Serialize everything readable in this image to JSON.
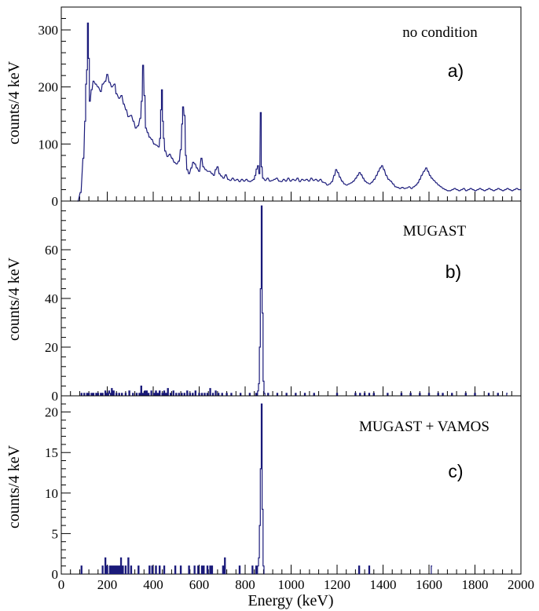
{
  "chart_data": [
    {
      "type": "histogram",
      "annotation": "no condition",
      "panel_label": "a)",
      "ylabel": "counts/4 keV",
      "xlim": [
        0,
        2000
      ],
      "ylim": [
        0,
        340
      ],
      "ytick_values": [
        0,
        100,
        200,
        300
      ],
      "ytick_labels": [
        "0",
        "100",
        "200",
        "300"
      ],
      "color": "#1a1a7a",
      "bin_width": 4,
      "spectrum": [
        [
          72,
          0
        ],
        [
          84,
          15
        ],
        [
          96,
          75
        ],
        [
          104,
          140
        ],
        [
          108,
          205
        ],
        [
          112,
          230
        ],
        [
          116,
          312
        ],
        [
          120,
          250
        ],
        [
          124,
          175
        ],
        [
          132,
          195
        ],
        [
          140,
          210
        ],
        [
          150,
          205
        ],
        [
          160,
          200
        ],
        [
          172,
          192
        ],
        [
          180,
          205
        ],
        [
          192,
          210
        ],
        [
          200,
          222
        ],
        [
          210,
          208
        ],
        [
          220,
          200
        ],
        [
          232,
          205
        ],
        [
          240,
          188
        ],
        [
          252,
          180
        ],
        [
          262,
          185
        ],
        [
          272,
          170
        ],
        [
          282,
          160
        ],
        [
          292,
          148
        ],
        [
          304,
          150
        ],
        [
          314,
          140
        ],
        [
          324,
          128
        ],
        [
          334,
          132
        ],
        [
          344,
          145
        ],
        [
          350,
          175
        ],
        [
          356,
          238
        ],
        [
          362,
          185
        ],
        [
          368,
          128
        ],
        [
          376,
          120
        ],
        [
          384,
          112
        ],
        [
          394,
          108
        ],
        [
          404,
          100
        ],
        [
          414,
          98
        ],
        [
          424,
          95
        ],
        [
          430,
          110
        ],
        [
          434,
          160
        ],
        [
          438,
          195
        ],
        [
          442,
          140
        ],
        [
          446,
          110
        ],
        [
          452,
          88
        ],
        [
          462,
          78
        ],
        [
          472,
          82
        ],
        [
          482,
          75
        ],
        [
          492,
          68
        ],
        [
          502,
          65
        ],
        [
          512,
          70
        ],
        [
          520,
          90
        ],
        [
          526,
          135
        ],
        [
          530,
          165
        ],
        [
          536,
          150
        ],
        [
          542,
          80
        ],
        [
          548,
          55
        ],
        [
          556,
          48
        ],
        [
          566,
          58
        ],
        [
          574,
          68
        ],
        [
          582,
          65
        ],
        [
          590,
          58
        ],
        [
          600,
          52
        ],
        [
          610,
          75
        ],
        [
          618,
          60
        ],
        [
          628,
          55
        ],
        [
          638,
          52
        ],
        [
          646,
          52
        ],
        [
          656,
          48
        ],
        [
          664,
          45
        ],
        [
          672,
          55
        ],
        [
          680,
          60
        ],
        [
          688,
          48
        ],
        [
          696,
          44
        ],
        [
          706,
          40
        ],
        [
          716,
          46
        ],
        [
          726,
          38
        ],
        [
          736,
          36
        ],
        [
          746,
          40
        ],
        [
          756,
          36
        ],
        [
          766,
          38
        ],
        [
          776,
          34
        ],
        [
          786,
          38
        ],
        [
          796,
          35
        ],
        [
          806,
          38
        ],
        [
          814,
          35
        ],
        [
          822,
          34
        ],
        [
          830,
          36
        ],
        [
          838,
          38
        ],
        [
          844,
          45
        ],
        [
          850,
          56
        ],
        [
          856,
          62
        ],
        [
          862,
          48
        ],
        [
          868,
          155
        ],
        [
          872,
          60
        ],
        [
          878,
          40
        ],
        [
          888,
          36
        ],
        [
          898,
          40
        ],
        [
          908,
          35
        ],
        [
          918,
          36
        ],
        [
          928,
          38
        ],
        [
          938,
          40
        ],
        [
          948,
          35
        ],
        [
          958,
          34
        ],
        [
          968,
          38
        ],
        [
          978,
          35
        ],
        [
          988,
          40
        ],
        [
          998,
          35
        ],
        [
          1008,
          38
        ],
        [
          1018,
          36
        ],
        [
          1028,
          40
        ],
        [
          1038,
          34
        ],
        [
          1048,
          38
        ],
        [
          1058,
          36
        ],
        [
          1068,
          38
        ],
        [
          1078,
          35
        ],
        [
          1088,
          40
        ],
        [
          1098,
          36
        ],
        [
          1108,
          38
        ],
        [
          1118,
          35
        ],
        [
          1128,
          38
        ],
        [
          1138,
          33
        ],
        [
          1148,
          32
        ],
        [
          1158,
          28
        ],
        [
          1168,
          30
        ],
        [
          1178,
          34
        ],
        [
          1188,
          45
        ],
        [
          1196,
          55
        ],
        [
          1204,
          50
        ],
        [
          1212,
          42
        ],
        [
          1222,
          35
        ],
        [
          1232,
          30
        ],
        [
          1242,
          28
        ],
        [
          1252,
          30
        ],
        [
          1262,
          32
        ],
        [
          1272,
          35
        ],
        [
          1282,
          40
        ],
        [
          1290,
          45
        ],
        [
          1298,
          50
        ],
        [
          1306,
          46
        ],
        [
          1314,
          40
        ],
        [
          1322,
          35
        ],
        [
          1332,
          32
        ],
        [
          1342,
          30
        ],
        [
          1352,
          33
        ],
        [
          1362,
          38
        ],
        [
          1372,
          45
        ],
        [
          1380,
          52
        ],
        [
          1388,
          58
        ],
        [
          1396,
          62
        ],
        [
          1404,
          55
        ],
        [
          1414,
          45
        ],
        [
          1424,
          38
        ],
        [
          1434,
          35
        ],
        [
          1444,
          30
        ],
        [
          1454,
          25
        ],
        [
          1464,
          24
        ],
        [
          1474,
          22
        ],
        [
          1484,
          24
        ],
        [
          1494,
          22
        ],
        [
          1504,
          23
        ],
        [
          1514,
          25
        ],
        [
          1524,
          22
        ],
        [
          1534,
          25
        ],
        [
          1544,
          28
        ],
        [
          1552,
          32
        ],
        [
          1560,
          38
        ],
        [
          1568,
          45
        ],
        [
          1578,
          52
        ],
        [
          1588,
          58
        ],
        [
          1596,
          52
        ],
        [
          1604,
          45
        ],
        [
          1612,
          40
        ],
        [
          1622,
          36
        ],
        [
          1632,
          32
        ],
        [
          1642,
          28
        ],
        [
          1652,
          25
        ],
        [
          1662,
          22
        ],
        [
          1672,
          20
        ],
        [
          1682,
          18
        ],
        [
          1692,
          18
        ],
        [
          1702,
          20
        ],
        [
          1712,
          22
        ],
        [
          1722,
          20
        ],
        [
          1732,
          18
        ],
        [
          1742,
          20
        ],
        [
          1752,
          22
        ],
        [
          1762,
          18
        ],
        [
          1772,
          20
        ],
        [
          1782,
          22
        ],
        [
          1792,
          20
        ],
        [
          1802,
          18
        ],
        [
          1812,
          20
        ],
        [
          1822,
          22
        ],
        [
          1832,
          20
        ],
        [
          1842,
          18
        ],
        [
          1852,
          20
        ],
        [
          1862,
          22
        ],
        [
          1872,
          20
        ],
        [
          1882,
          18
        ],
        [
          1892,
          20
        ],
        [
          1902,
          22
        ],
        [
          1912,
          20
        ],
        [
          1922,
          18
        ],
        [
          1932,
          20
        ],
        [
          1942,
          22
        ],
        [
          1952,
          20
        ],
        [
          1962,
          18
        ],
        [
          1972,
          20
        ],
        [
          1982,
          22
        ],
        [
          1992,
          20
        ],
        [
          2000,
          20
        ]
      ]
    },
    {
      "type": "histogram",
      "annotation": "MUGAST",
      "panel_label": "b)",
      "ylabel": "counts/4 keV",
      "xlim": [
        0,
        2000
      ],
      "ylim": [
        0,
        80
      ],
      "ytick_values": [
        0,
        20,
        40,
        60
      ],
      "ytick_labels": [
        "0",
        "20",
        "40",
        "60"
      ],
      "color": "#1a1a7a",
      "bin_width": 4,
      "spectrum": [
        [
          88,
          1
        ],
        [
          100,
          1
        ],
        [
          112,
          1
        ],
        [
          120,
          1
        ],
        [
          132,
          1
        ],
        [
          140,
          1
        ],
        [
          152,
          1
        ],
        [
          160,
          1
        ],
        [
          172,
          1
        ],
        [
          180,
          1
        ],
        [
          192,
          2
        ],
        [
          200,
          1
        ],
        [
          208,
          2
        ],
        [
          212,
          1
        ],
        [
          220,
          3
        ],
        [
          228,
          2
        ],
        [
          240,
          1
        ],
        [
          252,
          1
        ],
        [
          264,
          1
        ],
        [
          280,
          1
        ],
        [
          296,
          2
        ],
        [
          312,
          1
        ],
        [
          328,
          1
        ],
        [
          340,
          1
        ],
        [
          348,
          4
        ],
        [
          356,
          1
        ],
        [
          364,
          2
        ],
        [
          372,
          2
        ],
        [
          380,
          1
        ],
        [
          392,
          2
        ],
        [
          404,
          1
        ],
        [
          412,
          2
        ],
        [
          420,
          1
        ],
        [
          428,
          2
        ],
        [
          440,
          1
        ],
        [
          448,
          2
        ],
        [
          456,
          1
        ],
        [
          464,
          3
        ],
        [
          476,
          1
        ],
        [
          488,
          2
        ],
        [
          500,
          1
        ],
        [
          512,
          1
        ],
        [
          524,
          1
        ],
        [
          536,
          1
        ],
        [
          548,
          2
        ],
        [
          560,
          1
        ],
        [
          572,
          1
        ],
        [
          584,
          2
        ],
        [
          600,
          1
        ],
        [
          612,
          1
        ],
        [
          624,
          1
        ],
        [
          636,
          1
        ],
        [
          648,
          3
        ],
        [
          660,
          1
        ],
        [
          672,
          2
        ],
        [
          684,
          1
        ],
        [
          700,
          1
        ],
        [
          720,
          1
        ],
        [
          740,
          1
        ],
        [
          780,
          1
        ],
        [
          820,
          1
        ],
        [
          848,
          1
        ],
        [
          856,
          2
        ],
        [
          860,
          5
        ],
        [
          864,
          20
        ],
        [
          868,
          44
        ],
        [
          872,
          78
        ],
        [
          876,
          34
        ],
        [
          880,
          6
        ],
        [
          884,
          1
        ],
        [
          900,
          1
        ],
        [
          940,
          1
        ],
        [
          980,
          1
        ],
        [
          1020,
          1
        ],
        [
          1060,
          1
        ],
        [
          1100,
          1
        ],
        [
          1200,
          1
        ],
        [
          1280,
          1
        ],
        [
          1300,
          1
        ],
        [
          1320,
          1
        ],
        [
          1340,
          1
        ],
        [
          1360,
          1
        ],
        [
          1420,
          1
        ],
        [
          1480,
          1
        ],
        [
          1520,
          1
        ],
        [
          1560,
          1
        ],
        [
          1600,
          1
        ],
        [
          1640,
          1
        ],
        [
          1660,
          1
        ],
        [
          1700,
          1
        ],
        [
          1760,
          1
        ],
        [
          1800,
          1
        ],
        [
          1860,
          1
        ],
        [
          1900,
          1
        ],
        [
          1940,
          1
        ]
      ]
    },
    {
      "type": "histogram",
      "annotation": "MUGAST + VAMOS",
      "panel_label": "c)",
      "ylabel": "counts/4 keV",
      "xlabel": "Energy (keV)",
      "xlim": [
        0,
        2000
      ],
      "ylim": [
        0,
        22
      ],
      "ytick_values": [
        0,
        5,
        10,
        15,
        20
      ],
      "ytick_labels": [
        "0",
        "5",
        "10",
        "15",
        "20"
      ],
      "xtick_values": [
        0,
        200,
        400,
        600,
        800,
        1000,
        1200,
        1400,
        1600,
        1800,
        2000
      ],
      "xtick_labels": [
        "0",
        "200",
        "400",
        "600",
        "800",
        "1000",
        "1200",
        "1400",
        "1600",
        "1800",
        "2000"
      ],
      "color": "#1a1a7a",
      "bin_width": 4,
      "spectrum": [
        [
          88,
          1
        ],
        [
          180,
          1
        ],
        [
          192,
          2
        ],
        [
          200,
          1
        ],
        [
          212,
          1
        ],
        [
          220,
          1
        ],
        [
          228,
          1
        ],
        [
          236,
          1
        ],
        [
          244,
          1
        ],
        [
          252,
          1
        ],
        [
          260,
          2
        ],
        [
          268,
          1
        ],
        [
          280,
          1
        ],
        [
          292,
          2
        ],
        [
          304,
          1
        ],
        [
          336,
          1
        ],
        [
          384,
          1
        ],
        [
          396,
          1
        ],
        [
          412,
          1
        ],
        [
          428,
          1
        ],
        [
          448,
          1
        ],
        [
          496,
          1
        ],
        [
          520,
          1
        ],
        [
          556,
          1
        ],
        [
          580,
          1
        ],
        [
          596,
          1
        ],
        [
          612,
          1
        ],
        [
          620,
          1
        ],
        [
          636,
          1
        ],
        [
          648,
          1
        ],
        [
          656,
          1
        ],
        [
          704,
          1
        ],
        [
          712,
          2
        ],
        [
          776,
          1
        ],
        [
          832,
          1
        ],
        [
          848,
          1
        ],
        [
          856,
          1
        ],
        [
          860,
          2
        ],
        [
          864,
          6
        ],
        [
          868,
          13
        ],
        [
          872,
          21
        ],
        [
          876,
          8
        ],
        [
          880,
          1
        ],
        [
          1296,
          1
        ],
        [
          1340,
          1
        ],
        [
          1612,
          1
        ]
      ]
    }
  ]
}
